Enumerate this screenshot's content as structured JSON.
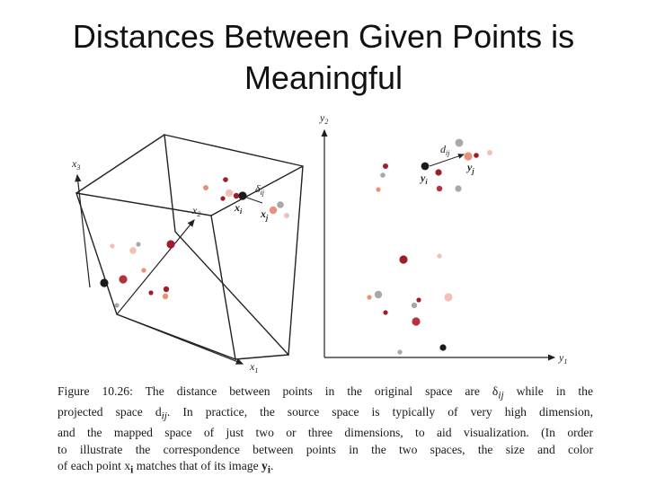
{
  "slide": {
    "title_lines": [
      "Distances Between Given Points is",
      "Meaningful"
    ]
  },
  "figure": {
    "cube_axes": {
      "x1": "x",
      "x1_sub": "1",
      "x2": "x",
      "x2_sub": "2",
      "x3": "x",
      "x3_sub": "3"
    },
    "cube_labels": {
      "delta": "δ",
      "delta_sub": "ij",
      "xi": "x",
      "xi_sub": "i",
      "xj": "x",
      "xj_sub": "j"
    },
    "plane_axes": {
      "y1": "y",
      "y1_sub": "1",
      "y2": "y",
      "y2_sub": "2"
    },
    "plane_labels": {
      "d": "d",
      "d_sub": "ij",
      "yi": "y",
      "yi_sub": "i",
      "yj": "y",
      "yj_sub": "j"
    },
    "colors": {
      "black": "#1a1a1a",
      "dark_red": "#a01c2a",
      "red": "#b8303a",
      "salmon": "#e8907a",
      "pink": "#f2c0b4",
      "gray": "#a8a8a8"
    }
  },
  "caption": {
    "lines": [
      "Figure 10.26: The distance between points in the original space are δ",
      "projected space d",
      "and the mapped space of just two or three dimensions, to aid visualization. (In order",
      "to illustrate the correspondence between points in the two spaces, the size and color",
      "of each point x"
    ],
    "line1_sub": "ij",
    "line1_end": " while in the",
    "line2_sub": "ij",
    "line2_end": ". In practice, the source space is typically of very high dimension,",
    "line5_bold": "i",
    "line5_mid": " matches that of its image ",
    "line5_bold2": "y",
    "line5_sub2": "i",
    "line5_end": "."
  }
}
